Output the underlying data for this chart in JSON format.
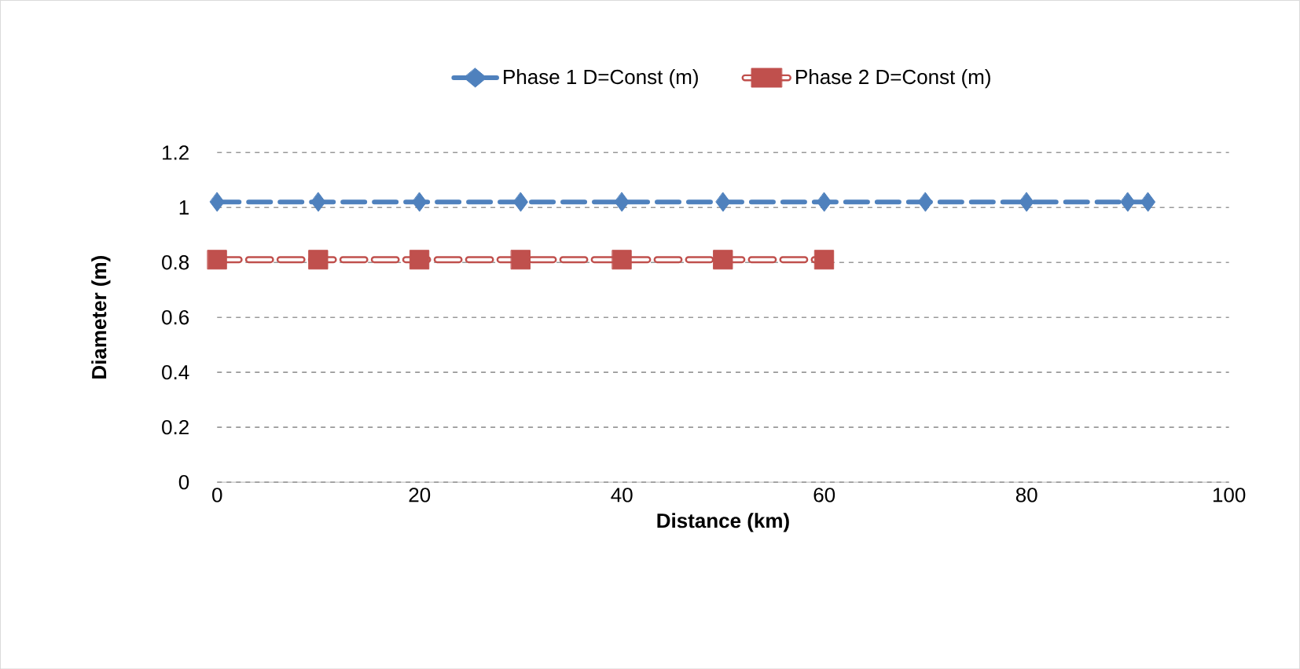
{
  "chart_data": {
    "type": "line",
    "xlabel": "Distance (km)",
    "ylabel": "Diameter (m)",
    "series": [
      {
        "name": "Phase 1  D=Const (m)",
        "color": "#4f81bd",
        "marker": "diamond",
        "x": [
          0,
          10,
          20,
          30,
          40,
          50,
          60,
          70,
          80,
          90,
          92
        ],
        "values": [
          1.02,
          1.02,
          1.02,
          1.02,
          1.02,
          1.02,
          1.02,
          1.02,
          1.02,
          1.02,
          1.02
        ]
      },
      {
        "name": "Phase 2  D=Const (m)",
        "color": "#c0504d",
        "marker": "square",
        "x": [
          0,
          10,
          20,
          30,
          40,
          50,
          60
        ],
        "values": [
          0.81,
          0.81,
          0.81,
          0.81,
          0.81,
          0.81,
          0.81
        ]
      }
    ],
    "xlim": [
      0,
      100
    ],
    "ylim": [
      0,
      1.2
    ],
    "xticks": [
      0,
      20,
      40,
      60,
      80,
      100
    ],
    "yticks": [
      0,
      0.2,
      0.4,
      0.6,
      0.8,
      1,
      1.2
    ],
    "grid": "y",
    "legend": "top",
    "line_style": "dashed"
  }
}
